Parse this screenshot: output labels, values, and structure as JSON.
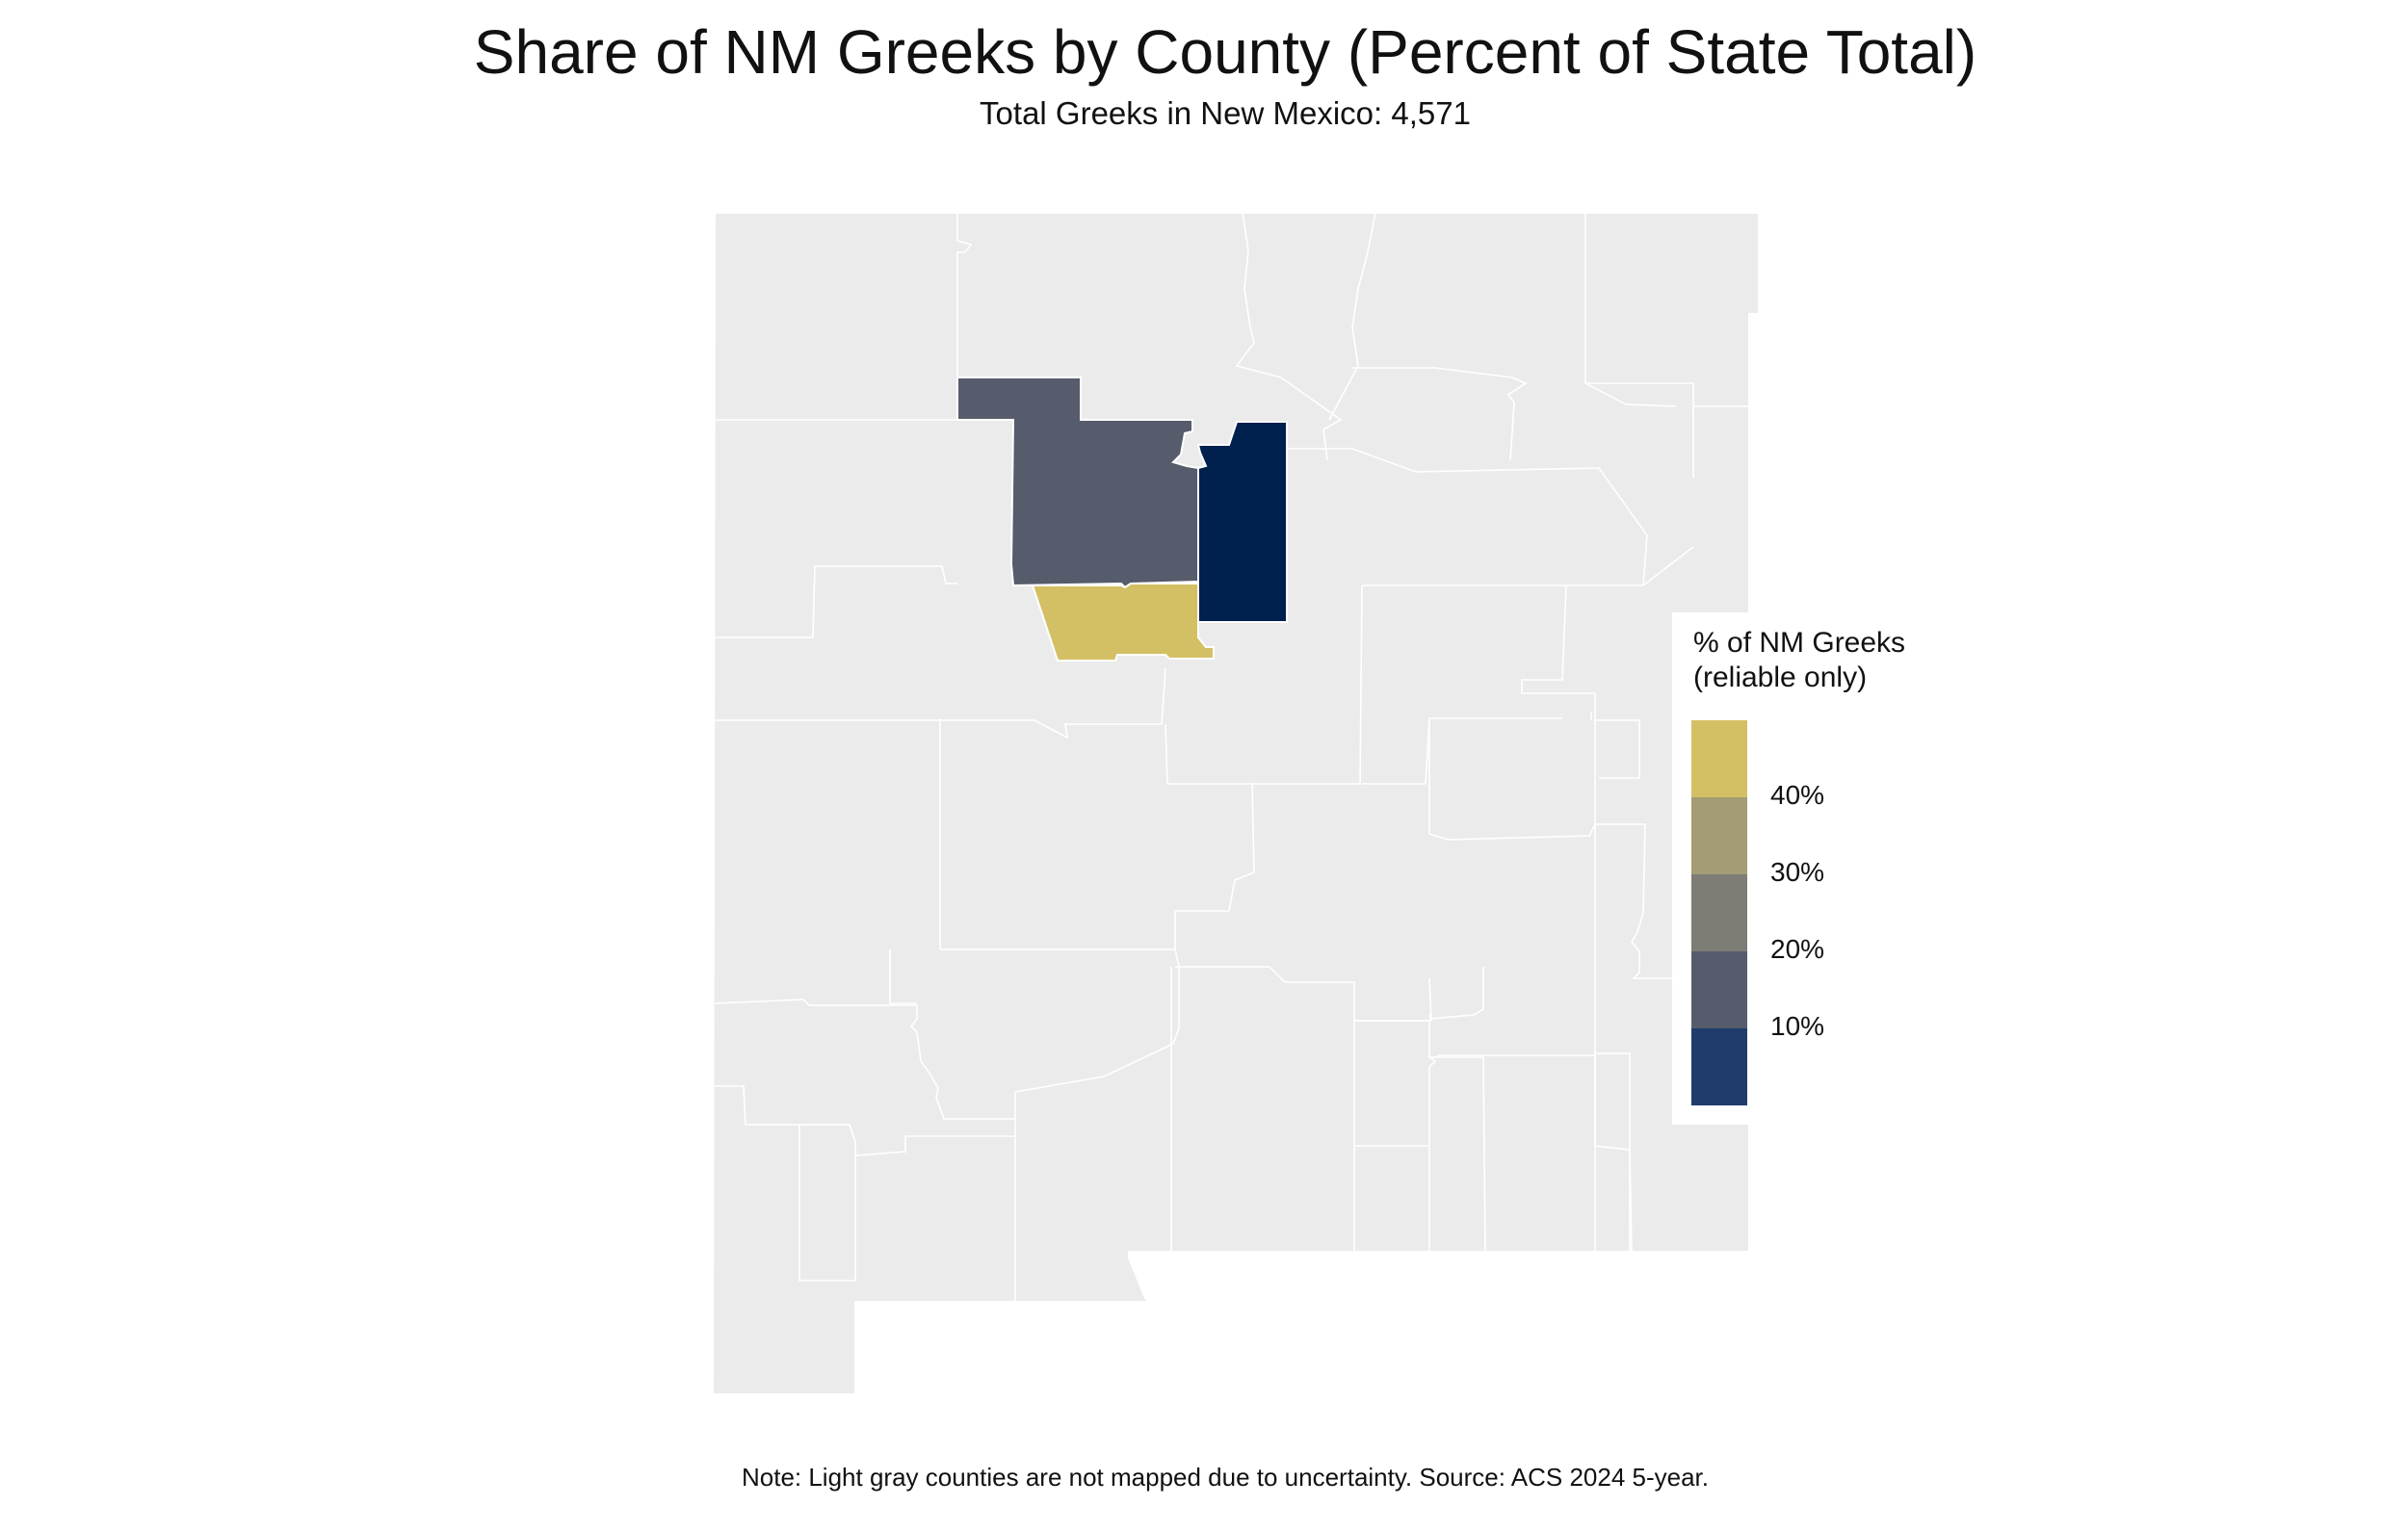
{
  "title": "Share of NM Greeks by County (Percent of State Total)",
  "subtitle": "Total Greeks in New Mexico: 4,571",
  "legend": {
    "title_line1": "% of NM Greeks",
    "title_line2": "(reliable only)",
    "ticks": [
      "40%",
      "30%",
      "20%",
      "10%"
    ],
    "colors": [
      "#D4C064",
      "#A39C74",
      "#7D7C75",
      "#565C6C",
      "#203C6C"
    ]
  },
  "map": {
    "unmapped_color": "#EBEBEB",
    "border_color": "#FFFFFF",
    "highlighted_counties": [
      {
        "label": "northern county",
        "color": "#565C6C"
      },
      {
        "label": "eastern county",
        "color": "#00204E"
      },
      {
        "label": "southern county",
        "color": "#D4C064"
      }
    ]
  },
  "note": "Note: Light gray counties are not mapped due to uncertainty. Source: ACS 2024 5-year."
}
